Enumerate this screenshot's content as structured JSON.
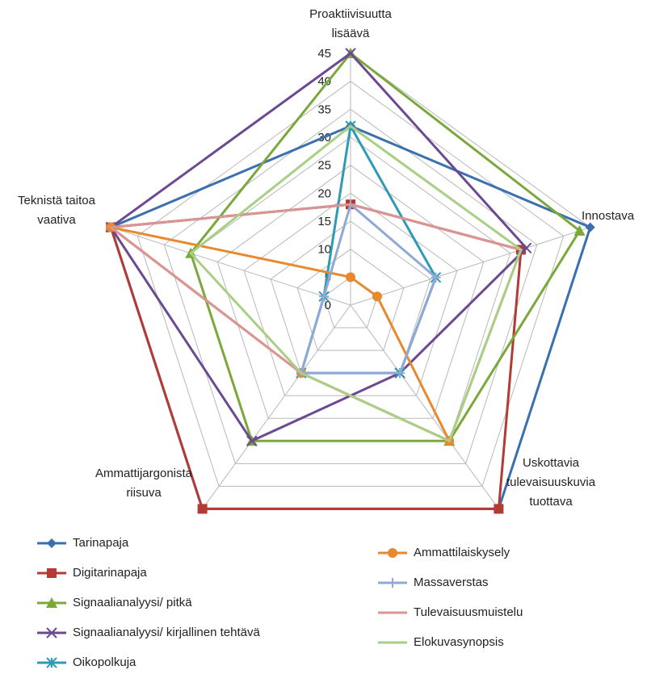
{
  "chart_data": {
    "type": "radar",
    "title": "",
    "axes": [
      {
        "label_lines": [
          "Proaktiivisuutta",
          "lisäävä"
        ]
      },
      {
        "label_lines": [
          "Innostava"
        ]
      },
      {
        "label_lines": [
          "Uskottavia",
          "tulevaisuuskuvia",
          "tuottava"
        ]
      },
      {
        "label_lines": [
          "Ammattijargonista",
          "riisuva"
        ]
      },
      {
        "label_lines": [
          "Teknistä taitoa",
          "vaativa"
        ]
      }
    ],
    "rmin": 0,
    "rmax": 45,
    "tick_step": 5,
    "ticks": [
      "0",
      "5",
      "10",
      "15",
      "20",
      "25",
      "30",
      "35",
      "40",
      "45"
    ],
    "grid": true,
    "legend_position": "bottom",
    "series": [
      {
        "name": "Tarinapaja",
        "color": "#3a6fb0",
        "marker": "diamond",
        "values": [
          32,
          45,
          45,
          45,
          45
        ]
      },
      {
        "name": "Digitarinapaja",
        "color": "#b33a35",
        "marker": "square",
        "values": [
          18,
          32,
          45,
          45,
          45
        ]
      },
      {
        "name": "Signaalianalyysi/ pitkä",
        "color": "#7aa83a",
        "marker": "triangle",
        "values": [
          45,
          43,
          30,
          30,
          30
        ]
      },
      {
        "name": "Signaalianalyysi/ kirjallinen tehtävä",
        "color": "#6b4a92",
        "marker": "x",
        "values": [
          45,
          33,
          15,
          30,
          45
        ]
      },
      {
        "name": "Oikopolkuja",
        "color": "#2e9bb5",
        "marker": "asterisk",
        "values": [
          32,
          16,
          15,
          15,
          5
        ]
      },
      {
        "name": "Ammattilaiskysely",
        "color": "#e8892e",
        "marker": "circle",
        "values": [
          5,
          5,
          30,
          15,
          45
        ]
      },
      {
        "name": "Massaverstas",
        "color": "#8fa8d6",
        "marker": "plus",
        "values": [
          18,
          16,
          15,
          15,
          5
        ]
      },
      {
        "name": "Tulevaisuusmuistelu",
        "color": "#d99494",
        "marker": "none",
        "values": [
          18,
          32,
          30,
          15,
          45
        ]
      },
      {
        "name": "Elokuvasynopsis",
        "color": "#a9cf86",
        "marker": "none",
        "values": [
          32,
          32,
          30,
          15,
          30
        ]
      }
    ]
  }
}
